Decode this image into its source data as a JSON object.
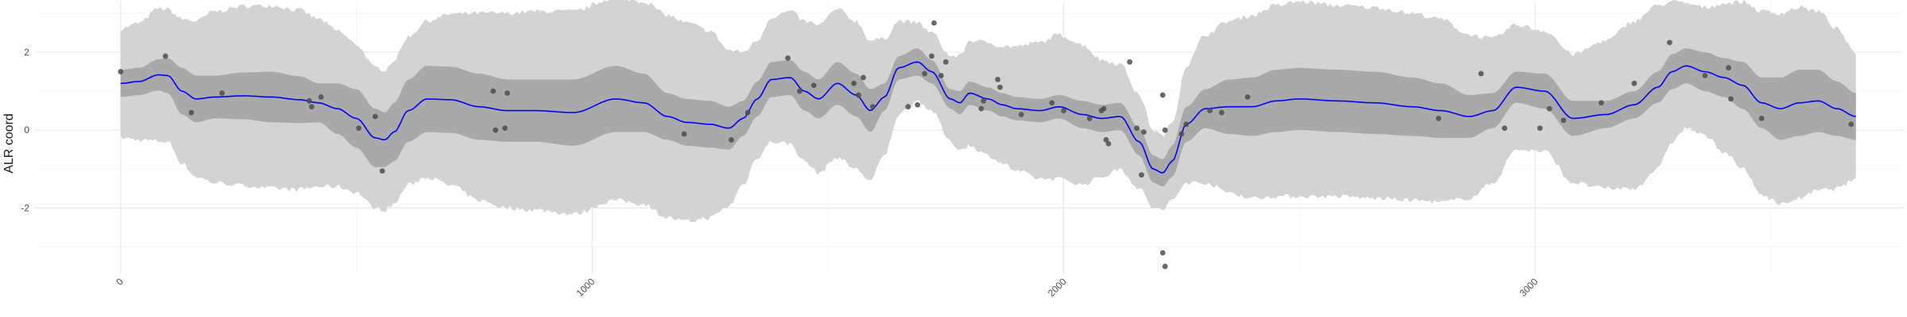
{
  "chart_data": {
    "type": "scatter",
    "ylabel": "ALR coord",
    "xlabel": "",
    "xlim": [
      -180,
      3780
    ],
    "ylim": [
      -3.7,
      3.3
    ],
    "grid": true,
    "x_ticks": [
      0,
      1000,
      2000,
      3000
    ],
    "y_ticks": [
      -2,
      0,
      2
    ],
    "colors": {
      "mean_line": "#0000ff",
      "inner_band": "#a9a9a9",
      "outer_band": "#d3d3d3",
      "points": "#4d4d4d",
      "grid_major": "#e6e6e6",
      "grid_minor": "#f2f2f2"
    },
    "mean_curve": {
      "x": [
        0,
        40,
        80,
        100,
        130,
        160,
        200,
        260,
        320,
        380,
        420,
        460,
        500,
        540,
        560,
        580,
        610,
        650,
        700,
        760,
        820,
        880,
        960,
        1050,
        1110,
        1160,
        1200,
        1250,
        1290,
        1320,
        1350,
        1380,
        1420,
        1450,
        1480,
        1520,
        1560,
        1590,
        1620,
        1650,
        1690,
        1720,
        1760,
        1780,
        1800,
        1840,
        1870,
        1900,
        1950,
        1990,
        2040,
        2080,
        2120,
        2160,
        2190,
        2210,
        2230,
        2260,
        2300,
        2350,
        2400,
        2450,
        2500,
        2580,
        2660,
        2740,
        2800,
        2860,
        2910,
        2960,
        3020,
        3080,
        3150,
        3210,
        3260,
        3290,
        3320,
        3360,
        3400,
        3440,
        3480,
        3520,
        3560,
        3600,
        3640,
        3680
      ],
      "mean": [
        1.2,
        1.25,
        1.42,
        1.4,
        1.0,
        0.8,
        0.85,
        0.88,
        0.85,
        0.78,
        0.7,
        0.55,
        0.3,
        -0.2,
        -0.25,
        -0.05,
        0.5,
        0.8,
        0.78,
        0.6,
        0.5,
        0.5,
        0.45,
        0.8,
        0.7,
        0.35,
        0.2,
        0.15,
        0.05,
        0.3,
        0.8,
        1.3,
        1.35,
        1.0,
        0.8,
        1.2,
        0.9,
        0.5,
        0.85,
        1.6,
        1.75,
        1.5,
        0.8,
        0.7,
        0.95,
        0.8,
        0.65,
        0.55,
        0.5,
        0.6,
        0.4,
        0.3,
        0.35,
        -0.3,
        -1.0,
        -1.1,
        -0.8,
        0.15,
        0.55,
        0.6,
        0.6,
        0.75,
        0.8,
        0.75,
        0.7,
        0.6,
        0.5,
        0.35,
        0.5,
        1.1,
        1.0,
        0.3,
        0.4,
        0.65,
        1.1,
        1.5,
        1.65,
        1.5,
        1.35,
        1.15,
        0.7,
        0.55,
        0.7,
        0.75,
        0.55,
        0.35
      ],
      "inner_halfwidth": [
        0.35,
        0.35,
        0.4,
        0.45,
        0.6,
        0.6,
        0.55,
        0.6,
        0.65,
        0.6,
        0.5,
        0.65,
        0.75,
        0.75,
        0.7,
        0.75,
        0.8,
        0.85,
        0.85,
        0.85,
        0.8,
        0.8,
        0.85,
        0.85,
        0.75,
        0.6,
        0.6,
        0.6,
        0.55,
        0.45,
        0.45,
        0.45,
        0.45,
        0.5,
        0.5,
        0.55,
        0.55,
        0.55,
        0.35,
        0.3,
        0.35,
        0.3,
        0.25,
        0.3,
        0.3,
        0.3,
        0.3,
        0.3,
        0.3,
        0.3,
        0.35,
        0.35,
        0.35,
        0.35,
        0.35,
        0.35,
        0.4,
        0.45,
        0.5,
        0.7,
        0.75,
        0.8,
        0.8,
        0.8,
        0.8,
        0.75,
        0.7,
        0.55,
        0.45,
        0.4,
        0.45,
        0.45,
        0.35,
        0.35,
        0.4,
        0.45,
        0.45,
        0.5,
        0.5,
        0.6,
        0.65,
        0.8,
        0.85,
        0.8,
        0.7,
        0.6
      ],
      "outer_halfwidth": [
        1.4,
        1.5,
        1.7,
        1.7,
        1.85,
        2.0,
        2.2,
        2.3,
        2.35,
        2.3,
        2.15,
        2.0,
        1.9,
        1.8,
        1.8,
        1.85,
        1.9,
        2.0,
        2.2,
        2.4,
        2.5,
        2.55,
        2.6,
        2.6,
        2.6,
        2.6,
        2.55,
        2.4,
        2.0,
        1.7,
        1.5,
        1.6,
        1.7,
        1.8,
        1.9,
        1.9,
        1.9,
        1.8,
        1.5,
        1.2,
        1.0,
        1.0,
        1.1,
        1.2,
        1.35,
        1.45,
        1.5,
        1.6,
        1.75,
        1.85,
        1.8,
        1.5,
        1.35,
        1.2,
        1.0,
        0.95,
        1.0,
        1.5,
        1.9,
        2.2,
        2.35,
        2.45,
        2.5,
        2.45,
        2.45,
        2.4,
        2.35,
        2.1,
        1.85,
        1.6,
        1.55,
        1.65,
        1.9,
        2.15,
        2.1,
        1.8,
        1.6,
        1.65,
        1.9,
        2.15,
        2.35,
        2.45,
        2.45,
        2.3,
        2.05,
        1.6
      ]
    },
    "points": [
      {
        "x": 0,
        "y": 1.5
      },
      {
        "x": 95,
        "y": 1.9
      },
      {
        "x": 150,
        "y": 0.45
      },
      {
        "x": 215,
        "y": 0.95
      },
      {
        "x": 400,
        "y": 0.75
      },
      {
        "x": 405,
        "y": 0.6
      },
      {
        "x": 425,
        "y": 0.85
      },
      {
        "x": 505,
        "y": 0.05
      },
      {
        "x": 540,
        "y": 0.35
      },
      {
        "x": 555,
        "y": -1.05
      },
      {
        "x": 790,
        "y": 1.0
      },
      {
        "x": 795,
        "y": 0.0
      },
      {
        "x": 815,
        "y": 0.05
      },
      {
        "x": 820,
        "y": 0.95
      },
      {
        "x": 1195,
        "y": -0.1
      },
      {
        "x": 1295,
        "y": -0.25
      },
      {
        "x": 1330,
        "y": 0.45
      },
      {
        "x": 1415,
        "y": 1.85
      },
      {
        "x": 1440,
        "y": 1.0
      },
      {
        "x": 1470,
        "y": 1.15
      },
      {
        "x": 1555,
        "y": 1.2
      },
      {
        "x": 1565,
        "y": 0.9
      },
      {
        "x": 1575,
        "y": 1.35
      },
      {
        "x": 1595,
        "y": 0.6
      },
      {
        "x": 1670,
        "y": 0.6
      },
      {
        "x": 1690,
        "y": 0.65
      },
      {
        "x": 1705,
        "y": 1.45
      },
      {
        "x": 1720,
        "y": 1.9
      },
      {
        "x": 1725,
        "y": 2.75
      },
      {
        "x": 1740,
        "y": 1.4
      },
      {
        "x": 1750,
        "y": 1.75
      },
      {
        "x": 1825,
        "y": 0.55
      },
      {
        "x": 1830,
        "y": 0.75
      },
      {
        "x": 1860,
        "y": 1.3
      },
      {
        "x": 1865,
        "y": 1.1
      },
      {
        "x": 1910,
        "y": 0.4
      },
      {
        "x": 1975,
        "y": 0.7
      },
      {
        "x": 2000,
        "y": 0.5
      },
      {
        "x": 2055,
        "y": 0.3
      },
      {
        "x": 2080,
        "y": 0.5
      },
      {
        "x": 2085,
        "y": 0.55
      },
      {
        "x": 2090,
        "y": -0.25
      },
      {
        "x": 2095,
        "y": -0.35
      },
      {
        "x": 2140,
        "y": 1.75
      },
      {
        "x": 2155,
        "y": 0.05
      },
      {
        "x": 2165,
        "y": -1.15
      },
      {
        "x": 2170,
        "y": -0.05
      },
      {
        "x": 2210,
        "y": 0.9
      },
      {
        "x": 2210,
        "y": -3.15
      },
      {
        "x": 2215,
        "y": -3.5
      },
      {
        "x": 2215,
        "y": 0.0
      },
      {
        "x": 2250,
        "y": -0.1
      },
      {
        "x": 2260,
        "y": 0.15
      },
      {
        "x": 2310,
        "y": 0.5
      },
      {
        "x": 2335,
        "y": 0.45
      },
      {
        "x": 2390,
        "y": 0.85
      },
      {
        "x": 2795,
        "y": 0.3
      },
      {
        "x": 2885,
        "y": 1.45
      },
      {
        "x": 2935,
        "y": 0.05
      },
      {
        "x": 3010,
        "y": 0.05
      },
      {
        "x": 3030,
        "y": 0.55
      },
      {
        "x": 3060,
        "y": 0.25
      },
      {
        "x": 3140,
        "y": 0.7
      },
      {
        "x": 3210,
        "y": 1.2
      },
      {
        "x": 3285,
        "y": 2.25
      },
      {
        "x": 3360,
        "y": 1.4
      },
      {
        "x": 3410,
        "y": 1.6
      },
      {
        "x": 3415,
        "y": 0.8
      },
      {
        "x": 3480,
        "y": 0.3
      },
      {
        "x": 3670,
        "y": 0.15
      }
    ]
  }
}
